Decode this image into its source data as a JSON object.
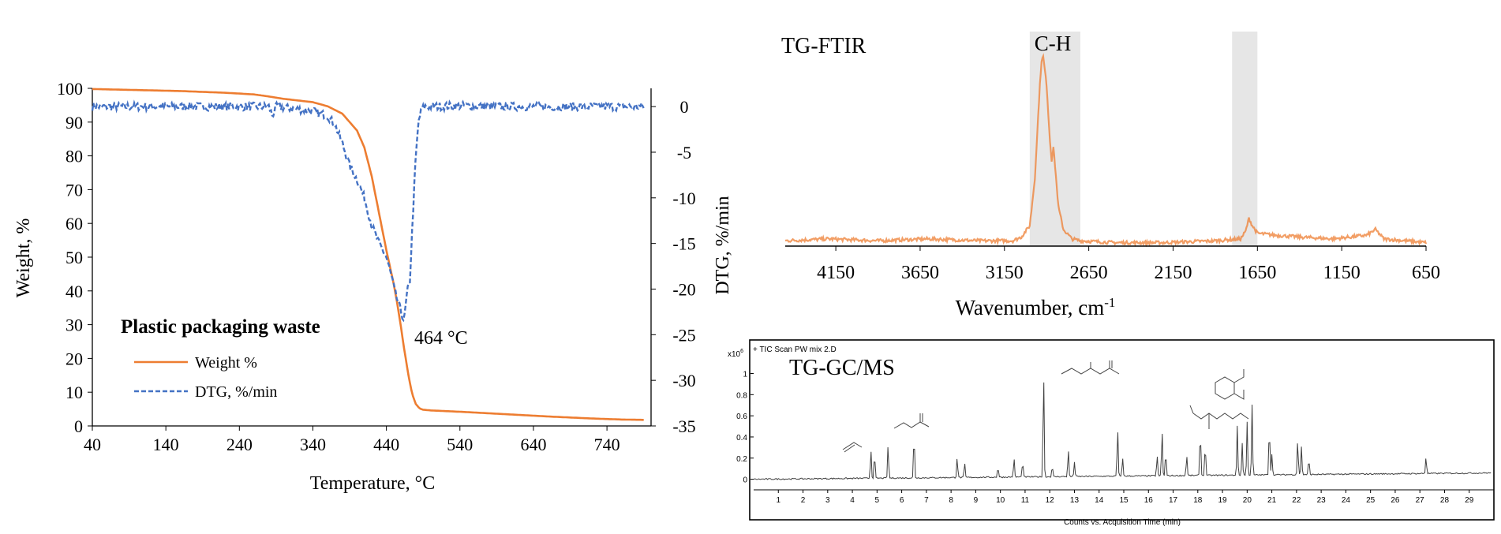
{
  "colors": {
    "weight": "#ed7d31",
    "dtg": "#4472c4",
    "ftir": "#ed7d31",
    "ftir_highlight": "#e6e6e6",
    "gcms": "#404040",
    "axis": "#000000"
  },
  "chart_data": [
    {
      "id": "tga",
      "type": "line",
      "title": "Plastic packaging waste",
      "xlabel": "Temperature, °C",
      "ylabel": "Weight, %",
      "y2label": "DTG, %/min",
      "xlim": [
        40,
        800
      ],
      "ylim": [
        0,
        100
      ],
      "y2lim": [
        -35,
        2
      ],
      "xticks": [
        "40",
        "140",
        "240",
        "340",
        "440",
        "540",
        "640",
        "740"
      ],
      "yticks": [
        "0",
        "10",
        "20",
        "30",
        "40",
        "50",
        "60",
        "70",
        "80",
        "90",
        "100"
      ],
      "y2ticks": [
        "0",
        "-5",
        "-10",
        "-15",
        "-20",
        "-25",
        "-30",
        "-35"
      ],
      "legend_position": "lower-left",
      "annotation": "464 °C",
      "series": [
        {
          "name": "Weight %",
          "axis": "left",
          "x": [
            40,
            100,
            160,
            220,
            260,
            280,
            300,
            340,
            360,
            380,
            400,
            410,
            420,
            430,
            440,
            450,
            455,
            460,
            464,
            470,
            475,
            480,
            485,
            490,
            500,
            540,
            600,
            660,
            720,
            760,
            790
          ],
          "y": [
            99.8,
            99.5,
            99.2,
            98.7,
            98.2,
            97.6,
            96.9,
            95.9,
            94.7,
            92.5,
            87.5,
            82.5,
            74,
            63,
            52,
            42,
            36,
            29,
            23,
            15,
            9.5,
            6.5,
            5.2,
            4.8,
            4.6,
            4.2,
            3.5,
            2.8,
            2.2,
            1.9,
            1.8
          ]
        },
        {
          "name": "DTG, %/min",
          "axis": "right",
          "x": [
            40,
            100,
            200,
            280,
            285,
            290,
            340,
            360,
            370,
            380,
            390,
            400,
            410,
            420,
            430,
            440,
            448,
            452,
            458,
            464,
            468,
            472,
            476,
            480,
            484,
            488,
            492,
            500,
            540,
            600,
            700,
            790
          ],
          "y": [
            0,
            0,
            0,
            0,
            -1,
            0,
            -0.5,
            -1,
            -2,
            -4,
            -6.5,
            -8,
            -10,
            -13,
            -15,
            -16.5,
            -19,
            -20.5,
            -22,
            -23.5,
            -20.5,
            -19,
            -12,
            -5.5,
            -1.5,
            -0.3,
            0,
            0,
            0.1,
            0,
            0,
            0
          ]
        }
      ]
    },
    {
      "id": "ftir",
      "type": "line",
      "title": "TG-FTIR",
      "xlabel": "Wavenumber, cm",
      "xlabel_sup": "-1",
      "xlim": [
        4450,
        650
      ],
      "xticks": [
        "4150",
        "3650",
        "3150",
        "2650",
        "2150",
        "1650",
        "1150",
        "650"
      ],
      "highlight_label": "C-H",
      "highlight_bands": [
        [
          3000,
          2700
        ],
        [
          1800,
          1650
        ]
      ],
      "series": [
        {
          "name": "",
          "x": [
            4450,
            4200,
            3900,
            3600,
            3300,
            3100,
            3050,
            3000,
            2990,
            2970,
            2955,
            2940,
            2930,
            2920,
            2900,
            2880,
            2870,
            2860,
            2850,
            2830,
            2800,
            2750,
            2700,
            2500,
            2200,
            1900,
            1750,
            1720,
            1700,
            1680,
            1650,
            1550,
            1400,
            1200,
            1000,
            950,
            900,
            650
          ],
          "y": [
            0.02,
            0.03,
            0.02,
            0.03,
            0.02,
            0.02,
            0.04,
            0.1,
            0.18,
            0.35,
            0.6,
            0.85,
            0.98,
            1.0,
            0.85,
            0.55,
            0.45,
            0.52,
            0.42,
            0.2,
            0.08,
            0.03,
            0.02,
            0.01,
            0.01,
            0.02,
            0.03,
            0.07,
            0.14,
            0.1,
            0.06,
            0.05,
            0.04,
            0.03,
            0.05,
            0.08,
            0.03,
            0.01
          ]
        }
      ]
    },
    {
      "id": "gcms",
      "type": "line",
      "title": "TG-GC/MS",
      "header": "+ TIC Scan PW mix 2.D",
      "xlabel": "Counts vs. Acquisition Time (min)",
      "y_multiplier": "x10",
      "y_multiplier_exp": "6",
      "xlim": [
        0,
        30
      ],
      "ylim": [
        -0.1,
        1.25
      ],
      "xticks": [
        "1",
        "2",
        "3",
        "4",
        "5",
        "6",
        "7",
        "8",
        "9",
        "10",
        "11",
        "12",
        "13",
        "14",
        "15",
        "16",
        "17",
        "18",
        "19",
        "20",
        "21",
        "22",
        "23",
        "24",
        "25",
        "26",
        "27",
        "28",
        "29"
      ],
      "yticks": [
        "0",
        "0.2",
        "0.4",
        "0.6",
        "0.8",
        "1"
      ],
      "peaks_t": [
        4.75,
        4.9,
        5.45,
        6.5,
        8.25,
        8.55,
        9.9,
        10.55,
        10.9,
        11.75,
        12.1,
        12.75,
        13.0,
        14.75,
        14.95,
        16.35,
        16.55,
        16.7,
        17.55,
        18.1,
        18.3,
        19.6,
        19.8,
        20.0,
        20.2,
        20.9,
        21.0,
        22.05,
        22.2,
        22.5,
        27.25
      ],
      "peaks_h": [
        0.28,
        0.23,
        0.32,
        0.42,
        0.2,
        0.14,
        0.1,
        0.18,
        0.15,
        1.0,
        0.1,
        0.26,
        0.14,
        0.46,
        0.18,
        0.2,
        0.44,
        0.23,
        0.2,
        0.44,
        0.3,
        0.46,
        0.3,
        0.5,
        0.66,
        0.48,
        0.2,
        0.33,
        0.26,
        0.15,
        0.16
      ]
    }
  ]
}
